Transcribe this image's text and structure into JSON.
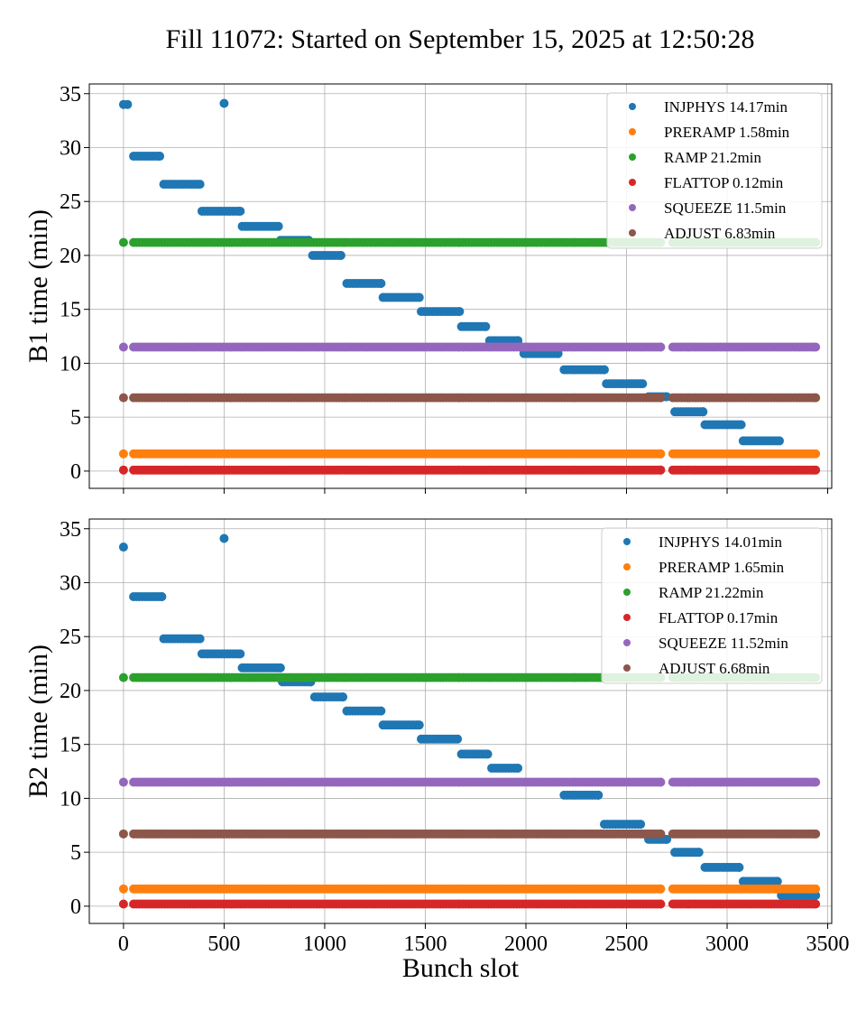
{
  "figure_title": "Fill 11072: Started on September 15, 2025 at 12:50:28",
  "colors": {
    "INJPHYS": "#1f77b4",
    "PRERAMP": "#ff7f0e",
    "RAMP": "#2ca02c",
    "FLATTOP": "#d62728",
    "SQUEEZE": "#9467bd",
    "ADJUST": "#8c564b"
  },
  "chart_data": [
    {
      "type": "scatter",
      "ylabel": "B1 time (min)",
      "xlabel": "",
      "xlim": [
        -170,
        3520
      ],
      "ylim": [
        -1.6,
        35.9
      ],
      "xticks": [
        0,
        500,
        1000,
        1500,
        2000,
        2500,
        3000,
        3500
      ],
      "yticks": [
        0,
        5,
        10,
        15,
        20,
        25,
        30,
        35
      ],
      "x_tick_labels_visible": false,
      "grid": true,
      "legend_position": "top-right",
      "series": [
        {
          "name": "INJPHYS 14.17min",
          "key": "INJPHYS",
          "points": [
            [
              0,
              34.0
            ],
            [
              20,
              34.0
            ],
            [
              500,
              34.1
            ]
          ],
          "runs": [
            [
              50,
              180,
              29.2
            ],
            [
              200,
              380,
              26.6
            ],
            [
              390,
              580,
              24.1
            ],
            [
              590,
              770,
              22.7
            ],
            [
              780,
              920,
              21.4
            ],
            [
              940,
              1080,
              20.0
            ],
            [
              1110,
              1280,
              17.4
            ],
            [
              1290,
              1470,
              16.1
            ],
            [
              1480,
              1670,
              14.8
            ],
            [
              1680,
              1800,
              13.4
            ],
            [
              1820,
              1960,
              12.1
            ],
            [
              1990,
              2160,
              10.9
            ],
            [
              2190,
              2390,
              9.4
            ],
            [
              2400,
              2580,
              8.1
            ],
            [
              2610,
              2700,
              6.9
            ],
            [
              2740,
              2880,
              5.5
            ],
            [
              2890,
              3070,
              4.3
            ],
            [
              3080,
              3260,
              2.8
            ]
          ]
        },
        {
          "name": "PRERAMP 1.58min",
          "key": "PRERAMP",
          "points": [
            [
              0,
              1.6
            ]
          ],
          "runs": [
            [
              50,
              2670,
              1.6
            ],
            [
              2730,
              3440,
              1.6
            ]
          ]
        },
        {
          "name": "RAMP 21.2min",
          "key": "RAMP",
          "points": [
            [
              0,
              21.2
            ]
          ],
          "runs": [
            [
              50,
              2670,
              21.2
            ],
            [
              2730,
              3440,
              21.2
            ]
          ]
        },
        {
          "name": "FLATTOP 0.12min",
          "key": "FLATTOP",
          "points": [
            [
              0,
              0.1
            ]
          ],
          "runs": [
            [
              50,
              2670,
              0.1
            ],
            [
              2730,
              3440,
              0.1
            ]
          ]
        },
        {
          "name": "SQUEEZE 11.5min",
          "key": "SQUEEZE",
          "points": [
            [
              0,
              11.5
            ]
          ],
          "runs": [
            [
              50,
              2670,
              11.5
            ],
            [
              2730,
              3440,
              11.5
            ]
          ]
        },
        {
          "name": "ADJUST 6.83min",
          "key": "ADJUST",
          "points": [
            [
              0,
              6.8
            ]
          ],
          "runs": [
            [
              50,
              2670,
              6.8
            ],
            [
              2730,
              3440,
              6.8
            ]
          ]
        }
      ]
    },
    {
      "type": "scatter",
      "ylabel": "B2 time (min)",
      "xlabel": "Bunch slot",
      "xlim": [
        -170,
        3520
      ],
      "ylim": [
        -1.6,
        35.9
      ],
      "xticks": [
        0,
        500,
        1000,
        1500,
        2000,
        2500,
        3000,
        3500
      ],
      "yticks": [
        0,
        5,
        10,
        15,
        20,
        25,
        30,
        35
      ],
      "x_tick_labels_visible": true,
      "grid": true,
      "legend_position": "top-right",
      "series": [
        {
          "name": "INJPHYS 14.01min",
          "key": "INJPHYS",
          "points": [
            [
              0,
              33.3
            ],
            [
              500,
              34.1
            ]
          ],
          "runs": [
            [
              50,
              190,
              28.7
            ],
            [
              200,
              380,
              24.8
            ],
            [
              390,
              580,
              23.4
            ],
            [
              590,
              780,
              22.1
            ],
            [
              790,
              930,
              20.8
            ],
            [
              950,
              1090,
              19.4
            ],
            [
              1110,
              1280,
              18.1
            ],
            [
              1290,
              1470,
              16.8
            ],
            [
              1480,
              1660,
              15.5
            ],
            [
              1680,
              1810,
              14.1
            ],
            [
              1830,
              1960,
              12.8
            ],
            [
              2190,
              2360,
              10.3
            ],
            [
              2390,
              2570,
              7.6
            ],
            [
              2610,
              2700,
              6.2
            ],
            [
              2740,
              2860,
              5.0
            ],
            [
              2890,
              3060,
              3.6
            ],
            [
              3080,
              3250,
              2.3
            ],
            [
              3270,
              3440,
              1.0
            ]
          ]
        },
        {
          "name": "PRERAMP 1.65min",
          "key": "PRERAMP",
          "points": [
            [
              0,
              1.6
            ]
          ],
          "runs": [
            [
              50,
              2670,
              1.6
            ],
            [
              2730,
              3440,
              1.6
            ]
          ]
        },
        {
          "name": "RAMP 21.22min",
          "key": "RAMP",
          "points": [
            [
              0,
              21.2
            ]
          ],
          "runs": [
            [
              50,
              2670,
              21.2
            ],
            [
              2730,
              3440,
              21.2
            ]
          ]
        },
        {
          "name": "FLATTOP 0.17min",
          "key": "FLATTOP",
          "points": [
            [
              0,
              0.2
            ]
          ],
          "runs": [
            [
              50,
              2670,
              0.2
            ],
            [
              2730,
              3440,
              0.2
            ]
          ]
        },
        {
          "name": "SQUEEZE 11.52min",
          "key": "SQUEEZE",
          "points": [
            [
              0,
              11.5
            ]
          ],
          "runs": [
            [
              50,
              2670,
              11.5
            ],
            [
              2730,
              3440,
              11.5
            ]
          ]
        },
        {
          "name": "ADJUST 6.68min",
          "key": "ADJUST",
          "points": [
            [
              0,
              6.7
            ]
          ],
          "runs": [
            [
              50,
              2670,
              6.7
            ],
            [
              2730,
              3440,
              6.7
            ]
          ]
        }
      ]
    }
  ]
}
